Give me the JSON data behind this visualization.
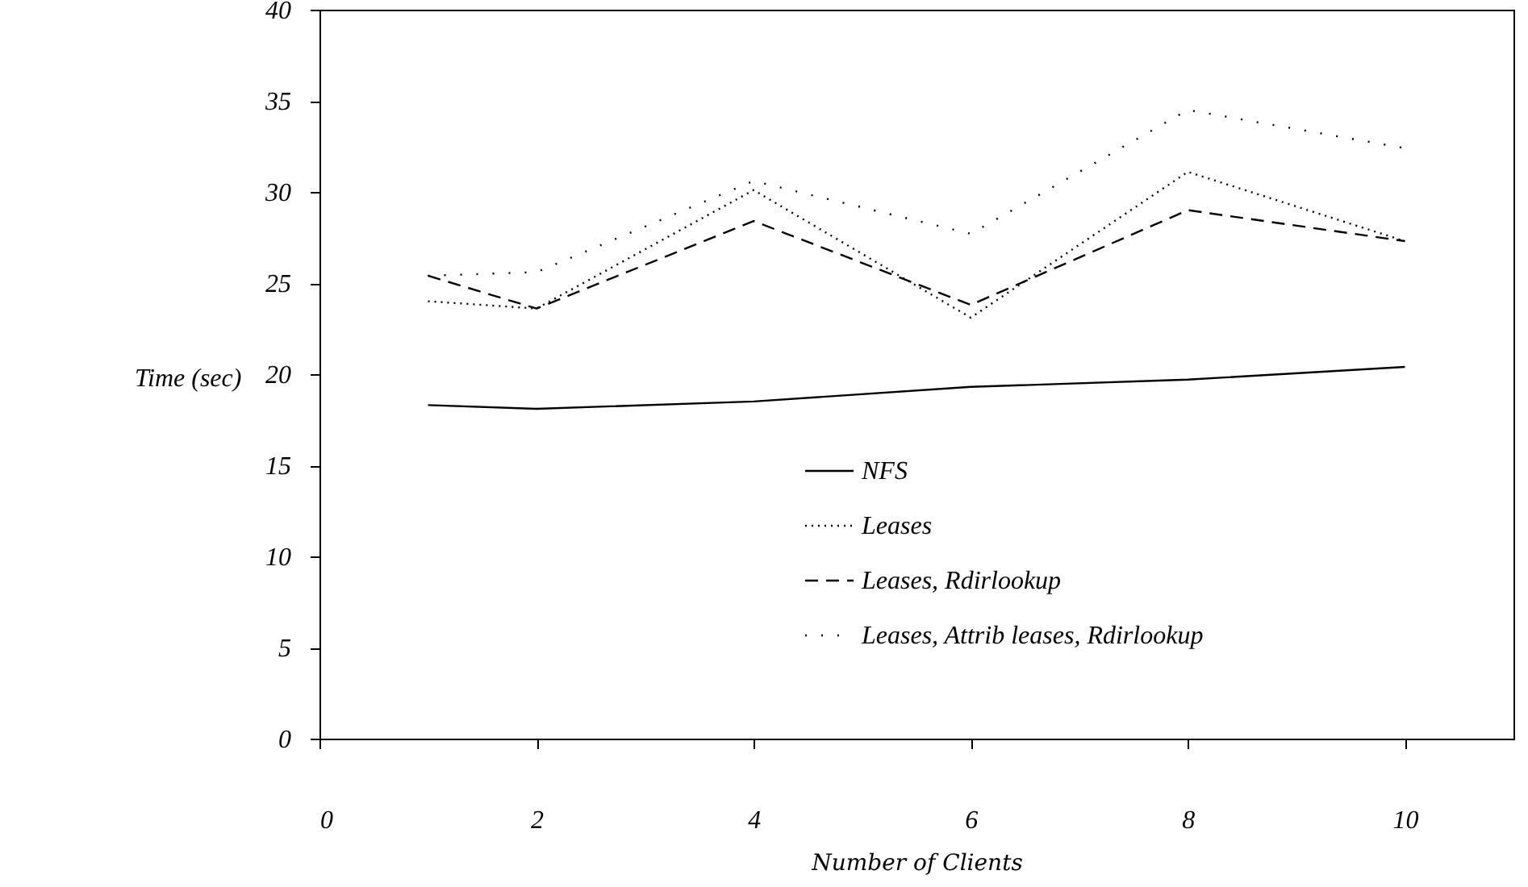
{
  "chart_data": {
    "type": "line",
    "xlabel": "Number of Clients",
    "ylabel": "Time (sec)",
    "x": [
      1,
      2,
      4,
      6,
      8,
      10
    ],
    "series": [
      {
        "name": "NFS",
        "color": "#000000",
        "line_style": "solid",
        "values": [
          18.3,
          18.1,
          18.5,
          19.3,
          19.7,
          20.4
        ]
      },
      {
        "name": "Leases",
        "color": "#000000",
        "line_style": "dotted",
        "values": [
          24.0,
          23.6,
          30.1,
          23.1,
          31.1,
          27.3
        ]
      },
      {
        "name": "Leases, Rdirlookup",
        "color": "#000000",
        "line_style": "dashed",
        "values": [
          25.4,
          23.6,
          28.4,
          23.8,
          29.0,
          27.3
        ]
      },
      {
        "name": "Leases, Attrib leases, Rdirlookup",
        "color": "#000000",
        "line_style": "dotted",
        "values": [
          25.4,
          25.6,
          30.6,
          27.7,
          34.5,
          32.4
        ]
      }
    ],
    "xlim": [
      0,
      11
    ],
    "xticks": [
      0,
      2,
      4,
      6,
      8,
      10
    ],
    "ylim": [
      0,
      40
    ],
    "yticks": [
      0,
      5,
      10,
      15,
      20,
      25,
      30,
      35,
      40
    ],
    "grid": false,
    "legend": "bottom right",
    "marker": "none"
  }
}
